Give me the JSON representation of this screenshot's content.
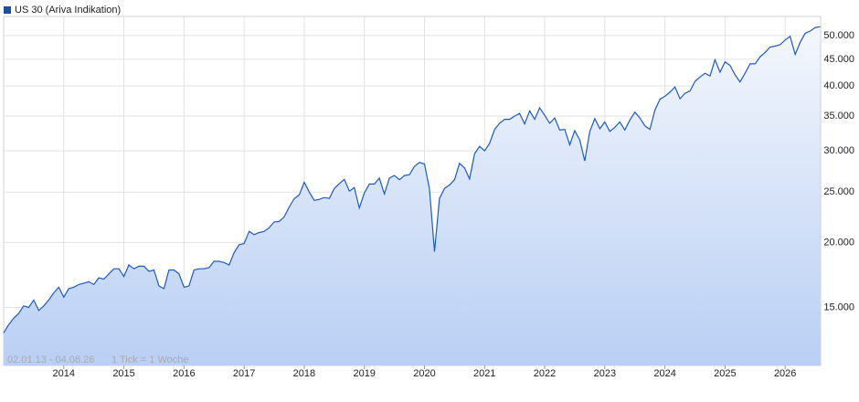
{
  "chart_data": {
    "type": "area-line",
    "title": "US 30 (Ariva Indikation)",
    "range_note": "02.01.13 - 04.08.26",
    "tick_note": "1 Tick = 1 Woche",
    "log_scale": true,
    "grid": true,
    "xlim": [
      2013.0,
      2026.59
    ],
    "xticks": [
      2014,
      2015,
      2016,
      2017,
      2018,
      2019,
      2020,
      2021,
      2022,
      2023,
      2024,
      2025,
      2026
    ],
    "ylim": [
      11600,
      54400
    ],
    "yticks": [
      {
        "value": 15000,
        "label": "15.000"
      },
      {
        "value": 20000,
        "label": "20.000"
      },
      {
        "value": 25000,
        "label": "25.000"
      },
      {
        "value": 30000,
        "label": "30.000"
      },
      {
        "value": 35000,
        "label": "35.000"
      },
      {
        "value": 40000,
        "label": "40.000"
      },
      {
        "value": 45000,
        "label": "45.000"
      },
      {
        "value": 50000,
        "label": "50.000"
      }
    ],
    "x": [
      2013.0,
      2013.083,
      2013.167,
      2013.25,
      2013.333,
      2013.417,
      2013.5,
      2013.583,
      2013.667,
      2013.75,
      2013.833,
      2013.917,
      2014.0,
      2014.083,
      2014.167,
      2014.25,
      2014.333,
      2014.417,
      2014.5,
      2014.583,
      2014.667,
      2014.75,
      2014.833,
      2014.917,
      2015.0,
      2015.083,
      2015.167,
      2015.25,
      2015.333,
      2015.417,
      2015.5,
      2015.583,
      2015.667,
      2015.75,
      2015.833,
      2015.917,
      2016.0,
      2016.083,
      2016.167,
      2016.25,
      2016.333,
      2016.417,
      2016.5,
      2016.583,
      2016.667,
      2016.75,
      2016.833,
      2016.917,
      2017.0,
      2017.083,
      2017.167,
      2017.25,
      2017.333,
      2017.417,
      2017.5,
      2017.583,
      2017.667,
      2017.75,
      2017.833,
      2017.917,
      2018.0,
      2018.083,
      2018.167,
      2018.25,
      2018.333,
      2018.417,
      2018.5,
      2018.583,
      2018.667,
      2018.75,
      2018.833,
      2018.917,
      2019.0,
      2019.083,
      2019.167,
      2019.25,
      2019.333,
      2019.417,
      2019.5,
      2019.583,
      2019.667,
      2019.75,
      2019.833,
      2019.917,
      2020.0,
      2020.083,
      2020.167,
      2020.25,
      2020.333,
      2020.417,
      2020.5,
      2020.583,
      2020.667,
      2020.75,
      2020.833,
      2020.917,
      2021.0,
      2021.083,
      2021.167,
      2021.25,
      2021.333,
      2021.417,
      2021.5,
      2021.583,
      2021.667,
      2021.75,
      2021.833,
      2021.917,
      2022.0,
      2022.083,
      2022.167,
      2022.25,
      2022.333,
      2022.417,
      2022.5,
      2022.583,
      2022.667,
      2022.75,
      2022.833,
      2022.917,
      2023.0,
      2023.083,
      2023.167,
      2023.25,
      2023.333,
      2023.417,
      2023.5,
      2023.583,
      2023.667,
      2023.75,
      2023.833,
      2023.917,
      2024.0,
      2024.083,
      2024.167,
      2024.25,
      2024.333,
      2024.417,
      2024.5,
      2024.583,
      2024.667,
      2024.75,
      2024.833,
      2024.917,
      2025.0,
      2025.083,
      2025.167,
      2025.25,
      2025.333,
      2025.417,
      2025.5,
      2025.583,
      2025.667,
      2025.75,
      2025.833,
      2025.917,
      2026.0,
      2026.083,
      2026.167,
      2026.25,
      2026.333,
      2026.417,
      2026.5,
      2026.583
    ],
    "series": [
      {
        "name": "US 30 (Ariva Indikation)",
        "color": "#1f5bbf",
        "values": [
          13400,
          13900,
          14300,
          14600,
          15100,
          15000,
          15500,
          14800,
          15100,
          15500,
          16000,
          16400,
          15700,
          16300,
          16400,
          16600,
          16700,
          16800,
          16600,
          17100,
          17000,
          17400,
          17800,
          17800,
          17200,
          18100,
          17800,
          18000,
          18000,
          17600,
          17700,
          16500,
          16300,
          17700,
          17700,
          17400,
          16400,
          16500,
          17700,
          17800,
          17800,
          17900,
          18400,
          18400,
          18300,
          18100,
          19100,
          19800,
          19900,
          21000,
          20700,
          20900,
          21000,
          21350,
          21900,
          21950,
          22400,
          23400,
          24270,
          24700,
          26100,
          25000,
          24100,
          24200,
          24400,
          24300,
          25400,
          25960,
          26450,
          25100,
          25500,
          23300,
          24900,
          25900,
          25900,
          26600,
          24800,
          26600,
          26900,
          26400,
          26900,
          27000,
          28000,
          28500,
          28300,
          25400,
          19200,
          24300,
          25400,
          25800,
          26400,
          28400,
          27800,
          26500,
          29600,
          30600,
          30000,
          31000,
          33000,
          33900,
          34500,
          34500,
          35000,
          35400,
          33800,
          35800,
          34500,
          36300,
          35100,
          33900,
          34700,
          32900,
          33000,
          30800,
          32800,
          31500,
          28700,
          32700,
          34600,
          33100,
          34100,
          32700,
          33300,
          34100,
          32900,
          34400,
          35600,
          34700,
          33500,
          33000,
          35900,
          37700,
          38200,
          38900,
          39800,
          37800,
          38700,
          39100,
          40800,
          41600,
          42300,
          41800,
          44900,
          42500,
          44500,
          43800,
          42000,
          40700,
          42300,
          44100,
          44100,
          45500,
          46400,
          47500,
          47700,
          48000,
          49000,
          49800,
          46000,
          48500,
          50500,
          51000,
          51800,
          52000
        ]
      }
    ]
  }
}
